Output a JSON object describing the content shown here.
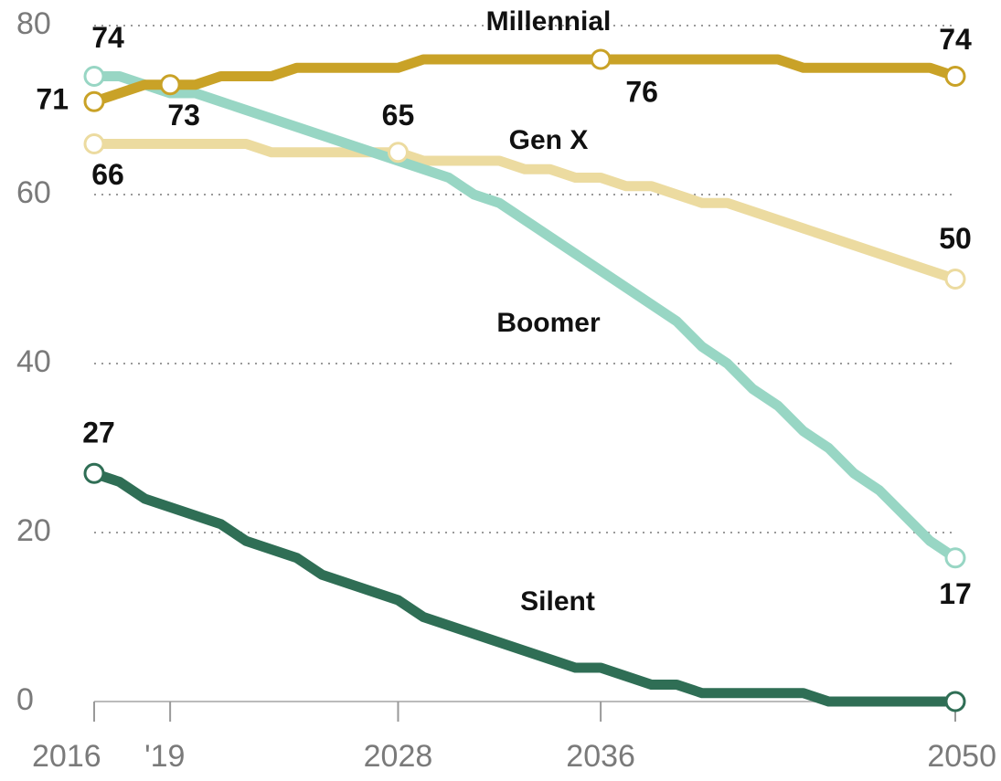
{
  "chart_data": {
    "type": "line",
    "x": [
      2016,
      2017,
      2018,
      2019,
      2020,
      2021,
      2022,
      2023,
      2024,
      2025,
      2026,
      2027,
      2028,
      2029,
      2030,
      2031,
      2032,
      2033,
      2034,
      2035,
      2036,
      2037,
      2038,
      2039,
      2040,
      2041,
      2042,
      2043,
      2044,
      2045,
      2046,
      2047,
      2048,
      2049,
      2050
    ],
    "series": [
      {
        "name": "Millennial",
        "color": "#c9a227",
        "labeled_x": [
          2016,
          2019,
          2036,
          2050
        ],
        "values": [
          71,
          72,
          73,
          73,
          73,
          74,
          74,
          74,
          75,
          75,
          75,
          75,
          75,
          76,
          76,
          76,
          76,
          76,
          76,
          76,
          76,
          76,
          76,
          76,
          76,
          76,
          76,
          76,
          75,
          75,
          75,
          75,
          75,
          75,
          74
        ]
      },
      {
        "name": "Gen X",
        "color": "#ecdba0",
        "labeled_x": [
          2016,
          2028,
          2050
        ],
        "values": [
          66,
          66,
          66,
          66,
          66,
          66,
          66,
          65,
          65,
          65,
          65,
          65,
          65,
          64,
          64,
          64,
          64,
          63,
          63,
          62,
          62,
          61,
          61,
          60,
          59,
          59,
          58,
          57,
          56,
          55,
          54,
          53,
          52,
          51,
          50
        ]
      },
      {
        "name": "Boomer",
        "color": "#98d6c4",
        "labeled_x": [
          2016,
          2050
        ],
        "values": [
          74,
          74,
          73,
          72,
          72,
          71,
          70,
          69,
          68,
          67,
          66,
          65,
          64,
          63,
          62,
          60,
          59,
          57,
          55,
          53,
          51,
          49,
          47,
          45,
          42,
          40,
          37,
          35,
          32,
          30,
          27,
          25,
          22,
          19,
          17
        ]
      },
      {
        "name": "Silent",
        "color": "#2f6e55",
        "labeled_x": [
          2016
        ],
        "values": [
          27,
          26,
          24,
          23,
          22,
          21,
          19,
          18,
          17,
          15,
          14,
          13,
          12,
          10,
          9,
          8,
          7,
          6,
          5,
          4,
          4,
          3,
          2,
          2,
          1,
          1,
          1,
          1,
          1,
          0,
          0,
          0,
          0,
          0,
          0
        ]
      }
    ],
    "xlim": [
      2016,
      2050
    ],
    "xticks": [
      2016,
      {
        "value": 2019,
        "label": "'19"
      },
      2028,
      2036,
      2050
    ],
    "ylim": [
      0,
      80
    ],
    "yticks": [
      0,
      20,
      40,
      60,
      80
    ],
    "grid": true
  }
}
